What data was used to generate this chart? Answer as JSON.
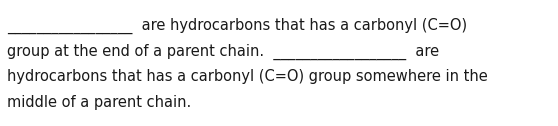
{
  "background_color": "#ffffff",
  "text_color": "#1a1a1a",
  "lines": [
    "_________________  are hydrocarbons that has a carbonyl (C=O)",
    "group at the end of a parent chain.  __________________  are",
    "hydrocarbons that has a carbonyl (C=O) group somewhere in the",
    "middle of a parent chain."
  ],
  "font_size": 10.5,
  "fig_width": 5.58,
  "fig_height": 1.26,
  "dpi": 100
}
